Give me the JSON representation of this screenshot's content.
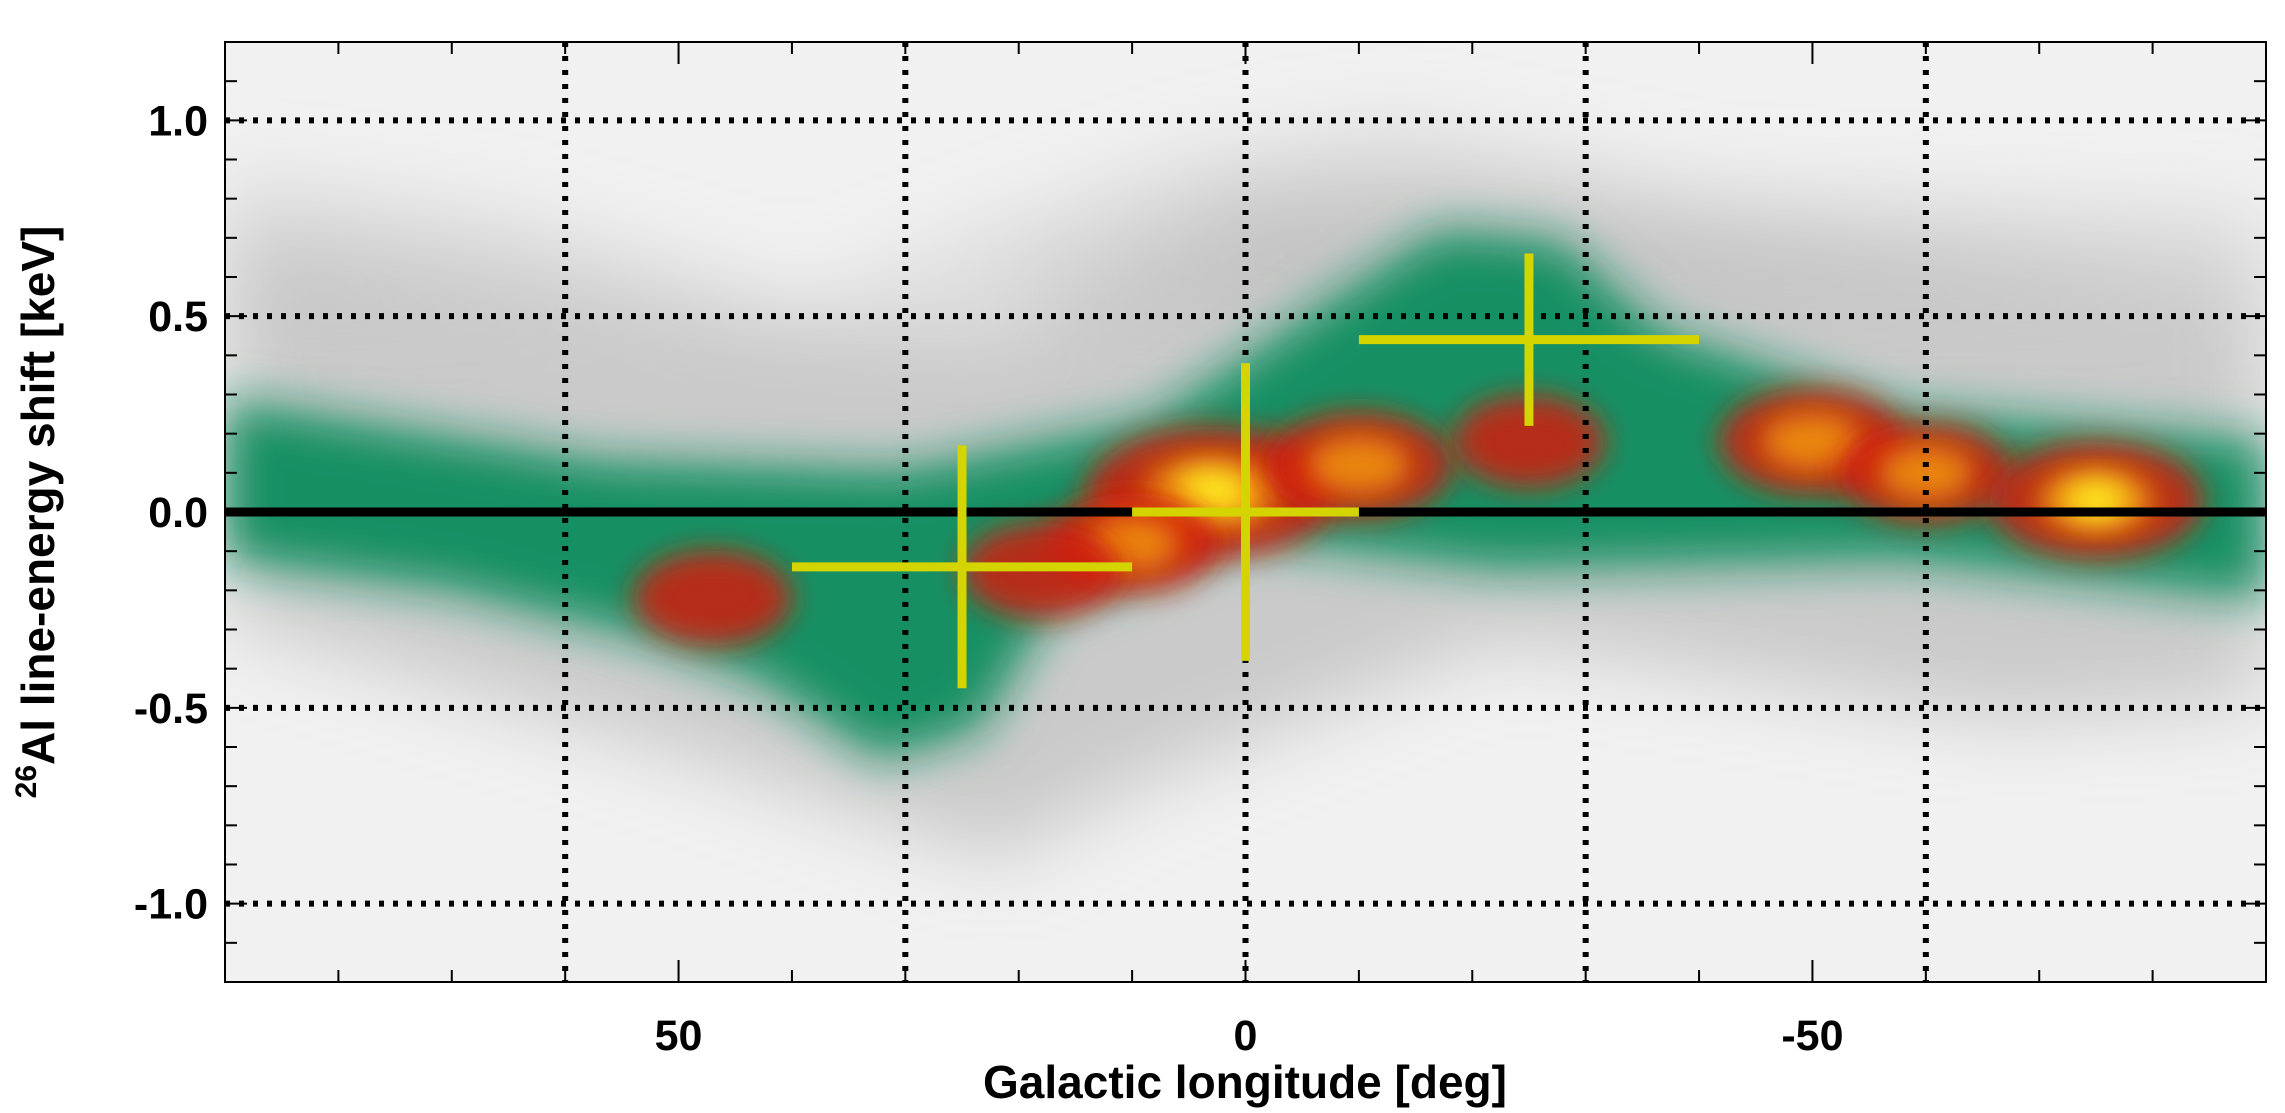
{
  "chart_data": {
    "type": "heatmap",
    "title": "",
    "xlabel": "Galactic longitude [deg]",
    "ylabel_sup": "26",
    "ylabel": "Al line-energy shift [keV]",
    "xlim": [
      90,
      -90
    ],
    "ylim": [
      -1.2,
      1.2
    ],
    "x_reversed": true,
    "x_ticks": [
      50,
      0,
      -50
    ],
    "x_tick_labels": [
      "50",
      "0",
      "-50"
    ],
    "y_ticks": [
      1.0,
      0.5,
      0.0,
      -0.5,
      -1.0
    ],
    "y_tick_labels": [
      "1.0",
      "0.5",
      "0.0",
      "-0.5",
      "-1.0"
    ],
    "grid": {
      "style": "dotted",
      "x": [
        60,
        30,
        0,
        -30,
        -60
      ],
      "y": [
        1.0,
        0.5,
        -0.5,
        -1.0
      ]
    },
    "zero_line": {
      "y": 0.0,
      "color": "#000000"
    },
    "colormap": [
      "#f2f2f2",
      "#c8c8c8",
      "#1f9a6a",
      "#0f8a5a",
      "#d11a08",
      "#f0a010",
      "#ffee20"
    ],
    "intensity_blobs": [
      {
        "l": 3,
        "shift": 0.05,
        "strength": 1.0
      },
      {
        "l": -10,
        "shift": 0.12,
        "strength": 0.55
      },
      {
        "l": -25,
        "shift": 0.18,
        "strength": 0.3
      },
      {
        "l": -50,
        "shift": 0.18,
        "strength": 0.55
      },
      {
        "l": -60,
        "shift": 0.1,
        "strength": 0.45
      },
      {
        "l": -75,
        "shift": 0.03,
        "strength": 0.75
      },
      {
        "l": 10,
        "shift": -0.08,
        "strength": 0.45
      },
      {
        "l": 18,
        "shift": -0.15,
        "strength": 0.35
      },
      {
        "l": 47,
        "shift": -0.22,
        "strength": 0.35
      }
    ],
    "data_points": [
      {
        "l": 25,
        "shift": -0.14,
        "l_err": 15,
        "shift_err": 0.31
      },
      {
        "l": 0,
        "shift": 0.0,
        "l_err": 10,
        "shift_err": 0.38
      },
      {
        "l": -25,
        "shift": 0.44,
        "l_err": 15,
        "shift_err": 0.22
      }
    ],
    "data_point_color": "#d4d400"
  }
}
